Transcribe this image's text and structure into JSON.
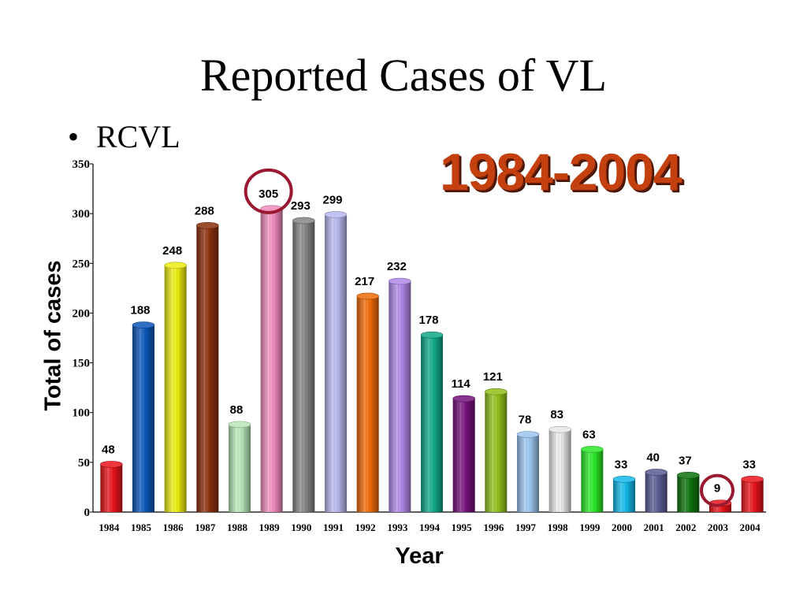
{
  "slide": {
    "title": "Reported Cases of VL",
    "bullet": "RCVL",
    "year_range": "1984-2004"
  },
  "chart_data": {
    "type": "bar",
    "categories": [
      "1984",
      "1985",
      "1986",
      "1987",
      "1988",
      "1989",
      "1990",
      "1991",
      "1992",
      "1993",
      "1994",
      "1995",
      "1996",
      "1997",
      "1998",
      "1999",
      "2000",
      "2001",
      "2002",
      "2003",
      "2004"
    ],
    "values": [
      48,
      188,
      248,
      288,
      88,
      305,
      293,
      299,
      217,
      232,
      178,
      114,
      121,
      78,
      83,
      63,
      33,
      40,
      37,
      9,
      33
    ],
    "colors": [
      "#e8141b",
      "#0a56b8",
      "#ecec12",
      "#8a2f0c",
      "#b8e6b8",
      "#f08cbe",
      "#858585",
      "#b8b8ee",
      "#ee6a08",
      "#b088e8",
      "#10a888",
      "#74107a",
      "#90c018",
      "#9ac4ee",
      "#e8e8e8",
      "#2ae828",
      "#14b8e8",
      "#5a5c94",
      "#0c720c",
      "#e8141b",
      "#e8141b"
    ],
    "xlabel": "Year",
    "ylabel": "Total of cases",
    "ylim": [
      0,
      350
    ],
    "yticks": [
      0,
      50,
      100,
      150,
      200,
      250,
      300,
      350
    ],
    "highlighted_categories": [
      "1989",
      "2003"
    ],
    "highlight_color": "#9a1830",
    "grid": false,
    "legend": "none"
  }
}
